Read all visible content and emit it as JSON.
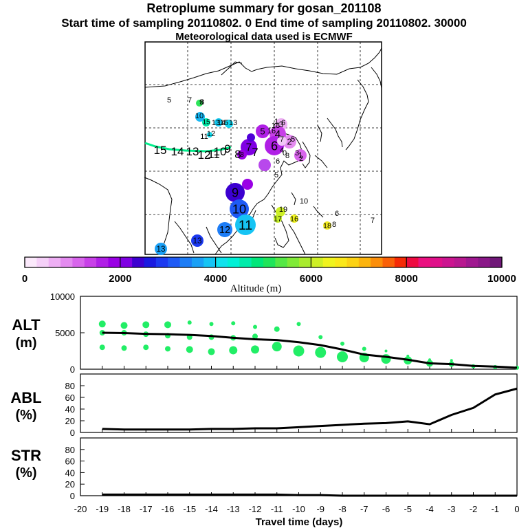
{
  "header": {
    "title": "Retroplume summary for gosan_201108",
    "subtitle": "Start time of sampling 20110802.     0    End time of sampling 20110802. 30000",
    "met": "Meteorological data used is ECMWF"
  },
  "colorbar": {
    "label": "Altitude (m)",
    "ticks": [
      "0",
      "2000",
      "4000",
      "6000",
      "8000",
      "10000"
    ],
    "colors": [
      "#fbe9fb",
      "#f5d0f8",
      "#eeaff4",
      "#e48bf0",
      "#d865ec",
      "#c840e8",
      "#b01fe6",
      "#9a00e5",
      "#7f00e3",
      "#3c00d0",
      "#1a1ae0",
      "#1c3af0",
      "#1e5af5",
      "#1d7df6",
      "#1aa0f6",
      "#16c4f4",
      "#10e2ec",
      "#00f0d6",
      "#00ecaa",
      "#00e77a",
      "#20e55a",
      "#55e845",
      "#80ea38",
      "#a9ec2e",
      "#cef026",
      "#f0f41e",
      "#fbe81a",
      "#fcd214",
      "#fcb40e",
      "#fb8e0a",
      "#f96008",
      "#f52a06",
      "#ee0a40",
      "#ea1080",
      "#e0108a",
      "#cc1490",
      "#b81890",
      "#a01890",
      "#8a1888",
      "#701878"
    ]
  },
  "map": {
    "plume_points": [
      {
        "label": "1",
        "alt": 1000
      },
      {
        "label": "2",
        "alt": 900
      },
      {
        "label": "3",
        "alt": 700
      },
      {
        "label": "4",
        "alt": 1300
      },
      {
        "label": "5",
        "alt": 1500
      },
      {
        "label": "6",
        "alt": 1700
      },
      {
        "label": "7",
        "alt": 2200
      },
      {
        "label": "8",
        "alt": 1800
      },
      {
        "label": "9",
        "alt": 2400
      },
      {
        "label": "10",
        "alt": 3000
      },
      {
        "label": "11",
        "alt": 3800
      },
      {
        "label": "12",
        "alt": 3300
      },
      {
        "label": "13",
        "alt": 2900
      },
      {
        "label": "13",
        "alt": 3600
      },
      {
        "label": "15",
        "alt": 4600
      }
    ],
    "track_labels": [
      "15",
      "14",
      "13",
      "12",
      "11",
      "10",
      "9",
      "8",
      "7"
    ],
    "small_labels": [
      "5",
      "7",
      "9",
      "8",
      "10",
      "11",
      "12",
      "13",
      "14",
      "15",
      "13",
      "6",
      "5",
      "10",
      "6",
      "7",
      "8",
      "16",
      "18",
      "19",
      "17",
      "18",
      "16",
      "8",
      "7",
      "6",
      "5",
      "4",
      "3",
      "2",
      "1",
      "0"
    ]
  },
  "panels": {
    "alt": {
      "label_main": "ALT",
      "label_unit": "(m)",
      "yticks": [
        "0",
        "5000",
        "10000"
      ],
      "ymax": 10000
    },
    "abl": {
      "label_main": "ABL",
      "label_unit": "(%)",
      "yticks": [
        "0",
        "20",
        "40",
        "60",
        "80"
      ],
      "ymax": 100
    },
    "str": {
      "label_main": "STR",
      "label_unit": "(%)",
      "yticks": [
        "0",
        "20",
        "40",
        "60",
        "80"
      ],
      "ymax": 100
    }
  },
  "xaxis": {
    "label": "Travel time (days)",
    "ticks": [
      "-20",
      "-19",
      "-18",
      "-17",
      "-16",
      "-15",
      "-14",
      "-13",
      "-12",
      "-11",
      "-10",
      "-9",
      "-8",
      "-7",
      "-6",
      "-5",
      "-4",
      "-3",
      "-2",
      "-1",
      "0"
    ]
  },
  "chart_data": {
    "type": "line",
    "xlabel": "Travel time (days)",
    "x": [
      -19,
      -18,
      -17,
      -16,
      -15,
      -14,
      -13,
      -12,
      -11,
      -10,
      -9,
      -8,
      -7,
      -6,
      -5,
      -4,
      -3,
      -2,
      -1,
      0
    ],
    "series": [
      {
        "name": "ALT mean (m)",
        "values": [
          5000,
          4950,
          4850,
          4800,
          4700,
          4550,
          4300,
          4100,
          4000,
          3700,
          3300,
          2700,
          2000,
          1700,
          1300,
          800,
          700,
          450,
          350,
          200
        ]
      },
      {
        "name": "ABL (%)",
        "values": [
          6,
          5,
          5,
          5,
          5,
          6,
          6,
          7,
          7,
          9,
          11,
          13,
          15,
          16,
          19,
          14,
          30,
          42,
          65,
          75
        ]
      },
      {
        "name": "STR (%)",
        "values": [
          2,
          2,
          2,
          2,
          2,
          2,
          2,
          2,
          2,
          1,
          1,
          0,
          0,
          0,
          0,
          0,
          0,
          0,
          0,
          0
        ]
      }
    ],
    "alt_clusters": [
      {
        "x": -19,
        "alts": [
          3000,
          5000,
          6200
        ],
        "sizes": [
          4,
          4,
          5
        ]
      },
      {
        "x": -18,
        "alts": [
          2900,
          5000,
          6000
        ],
        "sizes": [
          4,
          4,
          5
        ]
      },
      {
        "x": -17,
        "alts": [
          3000,
          4800,
          6100
        ],
        "sizes": [
          4,
          4,
          5
        ]
      },
      {
        "x": -16,
        "alts": [
          2800,
          4600,
          6100
        ],
        "sizes": [
          4,
          4,
          5
        ]
      },
      {
        "x": -15,
        "alts": [
          2700,
          4400,
          6400
        ],
        "sizes": [
          5,
          4,
          3
        ]
      },
      {
        "x": -14,
        "alts": [
          2400,
          4400,
          6200
        ],
        "sizes": [
          5,
          4,
          3
        ]
      },
      {
        "x": -13,
        "alts": [
          2600,
          4300,
          6300
        ],
        "sizes": [
          6,
          4,
          3
        ]
      },
      {
        "x": -12,
        "alts": [
          2700,
          4500,
          5800
        ],
        "sizes": [
          6,
          4,
          3
        ]
      },
      {
        "x": -11,
        "alts": [
          3100,
          5500
        ],
        "sizes": [
          7,
          4
        ]
      },
      {
        "x": -10,
        "alts": [
          2500,
          6200
        ],
        "sizes": [
          8,
          3
        ]
      },
      {
        "x": -9,
        "alts": [
          2300,
          4400
        ],
        "sizes": [
          8,
          3
        ]
      },
      {
        "x": -8,
        "alts": [
          1700,
          3500
        ],
        "sizes": [
          8,
          3
        ]
      },
      {
        "x": -7,
        "alts": [
          1600,
          2800
        ],
        "sizes": [
          7,
          3
        ]
      },
      {
        "x": -6,
        "alts": [
          1400,
          2500
        ],
        "sizes": [
          7,
          2
        ]
      },
      {
        "x": -5,
        "alts": [
          1200,
          1800
        ],
        "sizes": [
          6,
          2
        ]
      },
      {
        "x": -4,
        "alts": [
          800,
          1300
        ],
        "sizes": [
          5,
          2
        ]
      },
      {
        "x": -3,
        "alts": [
          700,
          1200
        ],
        "sizes": [
          4,
          2
        ]
      },
      {
        "x": -2,
        "alts": [
          400
        ],
        "sizes": [
          3
        ]
      },
      {
        "x": -1,
        "alts": [
          300
        ],
        "sizes": [
          3
        ]
      },
      {
        "x": 0,
        "alts": [
          200
        ],
        "sizes": [
          3
        ]
      }
    ]
  }
}
